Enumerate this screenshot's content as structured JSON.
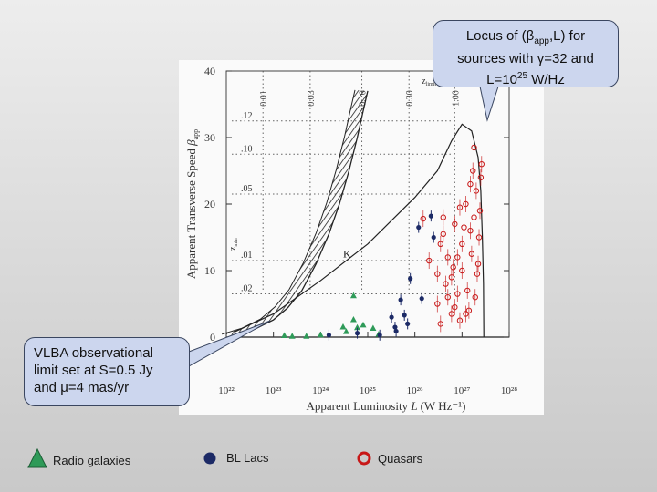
{
  "callouts": {
    "top_line1_pre": "Locus of (β",
    "top_line1_sub": "app",
    "top_line1_post": ",L) for",
    "top_line2": "sources with γ=32 and",
    "top_line3_pre": "L=10",
    "top_line3_sup": "25",
    "top_line3_post": " W/Hz",
    "left_line1": "VLBA observational",
    "left_line2": "limit set at S=0.5 Jy",
    "left_line3": "and μ=4 mas/yr"
  },
  "legend": [
    {
      "label": "Radio galaxies",
      "marker": "triangle",
      "color": "#2e9a58"
    },
    {
      "label": "BL Lacs",
      "marker": "filled-circle",
      "color": "#1c2a66"
    },
    {
      "label": "Quasars",
      "marker": "open-circle",
      "color": "#c81818"
    }
  ],
  "chart_data": {
    "type": "scatter",
    "xscale": "log",
    "xlim": [
      1e+22,
      1e+28
    ],
    "ylim": [
      0,
      40
    ],
    "xticks": [
      1e+22,
      1e+23,
      1e+24,
      1e+25,
      1e+26,
      1e+27,
      1e+28
    ],
    "xtick_labels": [
      "10²²",
      "10²³",
      "10²⁴",
      "10²⁵",
      "10²⁶",
      "10²⁷",
      "10²⁸"
    ],
    "yticks": [
      0,
      10,
      20,
      30,
      40
    ],
    "ytick_labels": [
      "0",
      "10",
      "20",
      "30",
      "40"
    ],
    "xlabel_main": "Apparent Luminosity",
    "xlabel_var": "L",
    "xlabel_unit": "(W Hz⁻¹)",
    "ylabel_main": "Apparent Transverse Speed",
    "ylabel_var": "β",
    "ylabel_sub": "app",
    "zlim_label_main": "z",
    "zlim_label_sub": "limit",
    "z_lines": [
      {
        "label": "0.01",
        "x": 6e+22
      },
      {
        "label": "0.03",
        "x": 6e+23
      },
      {
        "label": "0.10",
        "x": 7.5e+24
      },
      {
        "label": "0.30",
        "x": 7.5e+25
      },
      {
        "label": "1.00",
        "x": 7e+26
      }
    ],
    "zmin_label_main": "z",
    "zmin_label_sub": "min",
    "zmin_levels": [
      {
        "label": ".12",
        "y": 32.5
      },
      {
        "label": ".10",
        "y": 27.5
      },
      {
        "label": ".05",
        "y": 21.5
      },
      {
        "label": ".01",
        "y": 11.5
      },
      {
        "label": ".02",
        "y": 6.5
      }
    ],
    "K_label": "K",
    "K_point": {
      "x": 3e+24,
      "y": 12
    },
    "locus": [
      [
        1.5e+22,
        0.8
      ],
      [
        1e+23,
        3.5
      ],
      [
        1e+24,
        8.5
      ],
      [
        1e+25,
        14
      ],
      [
        1e+26,
        21
      ],
      [
        3e+26,
        25
      ],
      [
        6e+26,
        29.5
      ],
      [
        1e+27,
        32
      ],
      [
        1.6e+27,
        31
      ],
      [
        2.2e+27,
        27
      ],
      [
        2.5e+27,
        22
      ],
      [
        2.7e+27,
        15
      ],
      [
        2.85e+27,
        8
      ],
      [
        2.9e+27,
        0
      ]
    ],
    "limit_curve": [
      [
        1.5e+22,
        0.3
      ],
      [
        4e+22,
        1.2
      ],
      [
        1e+23,
        2.6
      ],
      [
        2e+23,
        4.4
      ],
      [
        4e+23,
        7
      ],
      [
        8e+23,
        11
      ],
      [
        1.5e+24,
        15.5
      ],
      [
        2.5e+24,
        20
      ],
      [
        4e+24,
        25
      ],
      [
        6e+24,
        30
      ],
      [
        8e+24,
        34
      ],
      [
        1e+25,
        37
      ]
    ],
    "series": [
      {
        "name": "Radio galaxies",
        "marker": "triangle",
        "x": [
          1.7e+23,
          2.5e+23,
          5e+23,
          1e+24,
          3e+24,
          3.5e+24,
          5e+24,
          6e+24,
          8e+24,
          1.3e+25,
          1.7e+25,
          5e+24
        ],
        "y": [
          0.2,
          0.1,
          0.1,
          0.3,
          1.5,
          0.8,
          2.6,
          1.4,
          1.8,
          1.3,
          0.4,
          6.2
        ]
      },
      {
        "name": "BL Lacs",
        "marker": "filled-circle",
        "x": [
          1.5e+24,
          6e+24,
          1.8e+25,
          3.2e+25,
          3.8e+25,
          5e+25,
          6e+25,
          8e+25,
          1.2e+26,
          1.4e+26,
          2.2e+26,
          2.5e+26,
          4e+25,
          7e+25
        ],
        "y": [
          0.3,
          0.6,
          0.3,
          3.0,
          1.5,
          5.6,
          3.3,
          8.8,
          16.5,
          5.8,
          18.2,
          15,
          0.9,
          2.0
        ]
      },
      {
        "name": "Quasars",
        "marker": "open-circle",
        "x": [
          1.5e+26,
          2e+26,
          3e+26,
          3.5e+26,
          4e+26,
          5e+26,
          6e+26,
          7e+26,
          8e+26,
          1e+27,
          1.2e+27,
          1.5e+27,
          1.8e+27,
          2e+27,
          2.3e+27,
          2.5e+27,
          3e+26,
          4.5e+26,
          6e+26,
          8e+26,
          1e+27,
          1.3e+27,
          1.6e+27,
          2.1e+27,
          2.4e+27,
          3.5e+26,
          5e+26,
          7e+26,
          9e+26,
          1.1e+27,
          1.4e+27,
          1.9e+27,
          2.2e+27,
          2.6e+27,
          1.5e+27,
          1.8e+27,
          4e+26,
          6.5e+26,
          9e+26,
          1.2e+27,
          1.7e+27
        ],
        "y": [
          17.8,
          11.5,
          9.5,
          14,
          18,
          12,
          9,
          17,
          6.5,
          14,
          20,
          16,
          18,
          22,
          15,
          24,
          5,
          8,
          3.5,
          12,
          10,
          7,
          12.5,
          9.5,
          19,
          2,
          6,
          4.5,
          2.5,
          16.5,
          4,
          6,
          11,
          26,
          23,
          28.5,
          15.5,
          10.5,
          19.5,
          3.5,
          25
        ]
      }
    ]
  }
}
